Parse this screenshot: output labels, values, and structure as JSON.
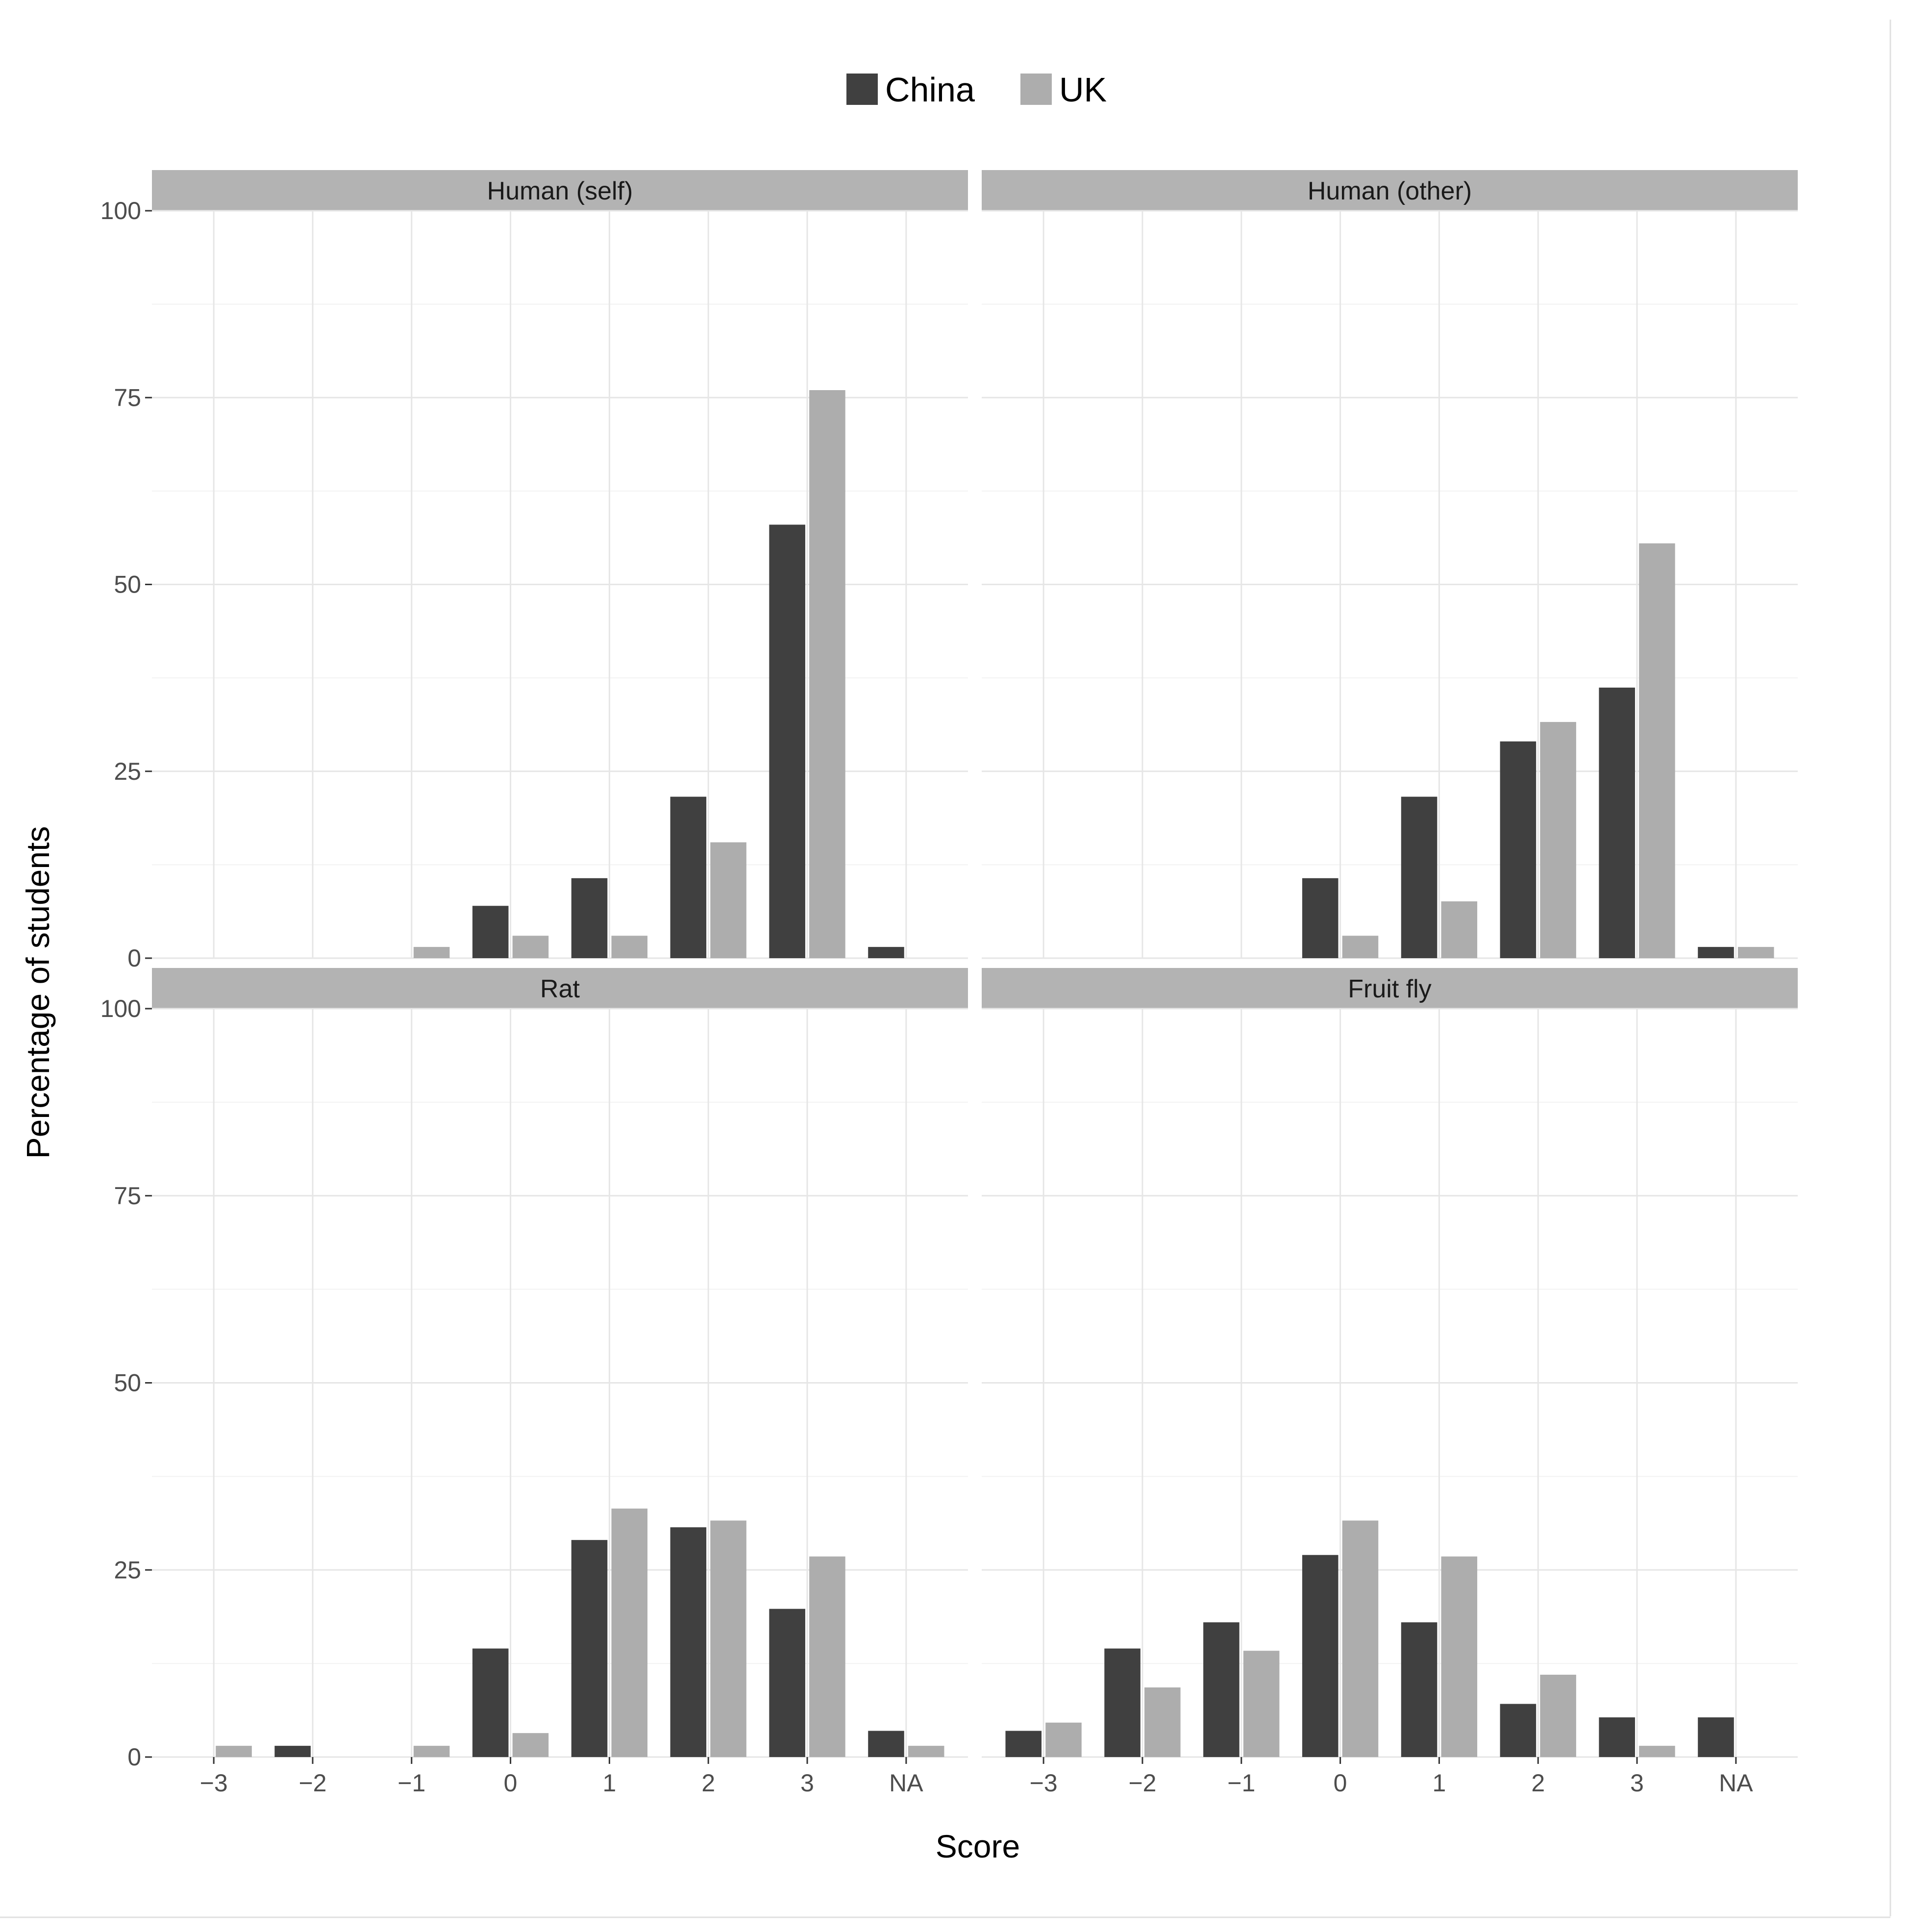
{
  "chart_data": {
    "type": "bar",
    "xlabel": "Score",
    "ylabel": "Percentage of students",
    "ylim": [
      0,
      100
    ],
    "yticks": [
      0,
      25,
      50,
      75,
      100
    ],
    "categories": [
      "−3",
      "−2",
      "−1",
      "0",
      "1",
      "2",
      "3",
      "NA"
    ],
    "legend": {
      "position": "top",
      "items": [
        {
          "name": "China",
          "color": "#404040"
        },
        {
          "name": "UK",
          "color": "#adadad"
        }
      ]
    },
    "grid": true,
    "panels": [
      {
        "title": "Human (self)",
        "series": [
          {
            "name": "China",
            "values": [
              0,
              0,
              0,
              7,
              10.7,
              21.6,
              58,
              1.5
            ]
          },
          {
            "name": "UK",
            "values": [
              0,
              0,
              1.5,
              3,
              3,
              15.5,
              76,
              0
            ]
          }
        ]
      },
      {
        "title": "Human (other)",
        "series": [
          {
            "name": "China",
            "values": [
              0,
              0,
              0,
              10.7,
              21.6,
              29,
              36.2,
              1.5
            ]
          },
          {
            "name": "UK",
            "values": [
              0,
              0,
              0,
              3,
              7.6,
              31.6,
              55.5,
              1.5
            ]
          }
        ]
      },
      {
        "title": "Rat",
        "series": [
          {
            "name": "China",
            "values": [
              0,
              1.5,
              0,
              14.5,
              29,
              30.7,
              19.8,
              3.5
            ]
          },
          {
            "name": "UK",
            "values": [
              1.5,
              0,
              1.5,
              3.2,
              33.2,
              31.6,
              26.8,
              1.5
            ]
          }
        ]
      },
      {
        "title": "Fruit fly",
        "series": [
          {
            "name": "China",
            "values": [
              3.5,
              14.5,
              18,
              27,
              18,
              7.1,
              5.3,
              5.3
            ]
          },
          {
            "name": "UK",
            "values": [
              4.6,
              9.3,
              14.2,
              31.6,
              26.8,
              11,
              1.5,
              0
            ]
          }
        ]
      }
    ]
  }
}
